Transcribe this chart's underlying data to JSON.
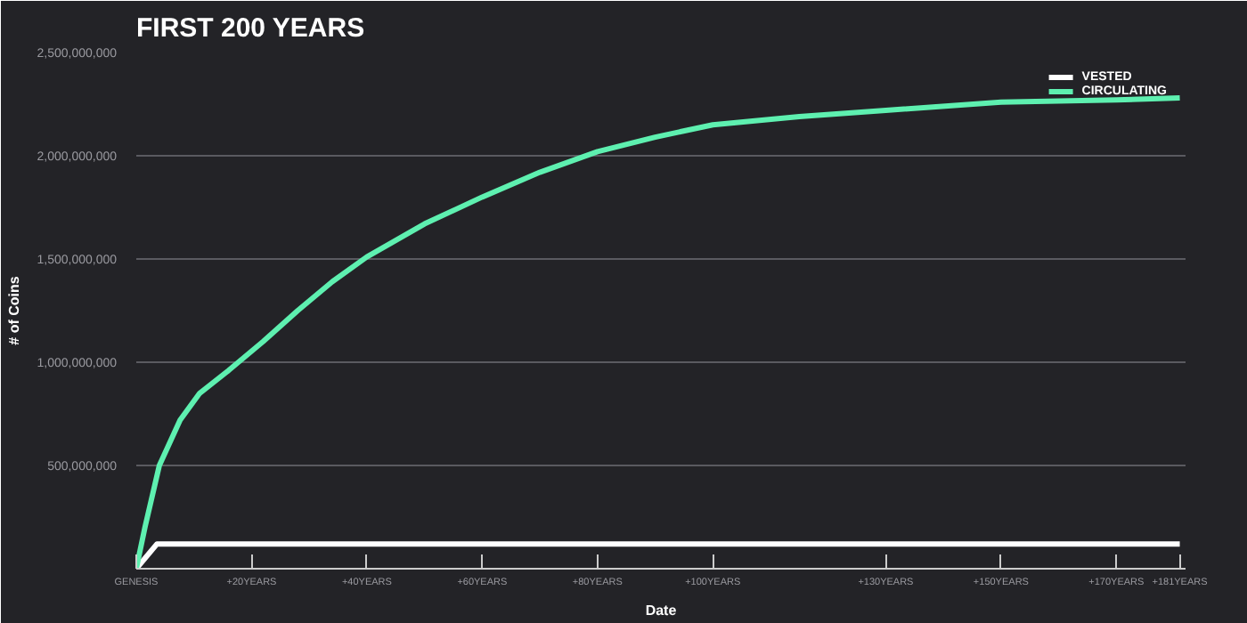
{
  "chart_data": {
    "type": "line",
    "title": "FIRST 200 YEARS",
    "xlabel": "Date",
    "ylabel": "# of Coins",
    "xlim": [
      0,
      182
    ],
    "ylim": [
      0,
      2500000000
    ],
    "xticks": [
      {
        "value": 0,
        "label": "GENESIS"
      },
      {
        "value": 20,
        "label": "+20YEARS"
      },
      {
        "value": 40,
        "label": "+40YEARS"
      },
      {
        "value": 60,
        "label": "+60YEARS"
      },
      {
        "value": 80,
        "label": "+80YEARS"
      },
      {
        "value": 100,
        "label": "+100YEARS"
      },
      {
        "value": 130,
        "label": "+130YEARS"
      },
      {
        "value": 150,
        "label": "+150YEARS"
      },
      {
        "value": 170,
        "label": "+170YEARS"
      },
      {
        "value": 181,
        "label": "+181YEARS"
      }
    ],
    "yticks": [
      {
        "value": 500000000,
        "label": "500,000,000"
      },
      {
        "value": 1000000000,
        "label": "1,000,000,000"
      },
      {
        "value": 1500000000,
        "label": "1,500,000,000"
      },
      {
        "value": 2000000000,
        "label": "2,000,000,000"
      },
      {
        "value": 2500000000,
        "label": "2,500,000,000"
      }
    ],
    "grid": "y",
    "legend": "top right",
    "marker": "none",
    "line_style": "solid",
    "series": [
      {
        "name": "VESTED",
        "color": "#ffffff",
        "x": [
          0,
          3.6,
          181
        ],
        "values": [
          0,
          120000000,
          120000000
        ]
      },
      {
        "name": "CIRCULATING",
        "color": "#5ef0b0",
        "x": [
          0,
          1.5,
          4,
          7.6,
          11,
          16,
          22,
          28,
          34,
          40,
          50,
          60,
          70,
          80,
          90,
          100,
          115,
          130,
          150,
          170,
          181
        ],
        "values": [
          0,
          200000000,
          500000000,
          720000000,
          850000000,
          960000000,
          1100000000,
          1250000000,
          1390000000,
          1510000000,
          1670000000,
          1800000000,
          1920000000,
          2020000000,
          2090000000,
          2150000000,
          2190000000,
          2220000000,
          2260000000,
          2270000000,
          2280000000
        ]
      }
    ]
  }
}
